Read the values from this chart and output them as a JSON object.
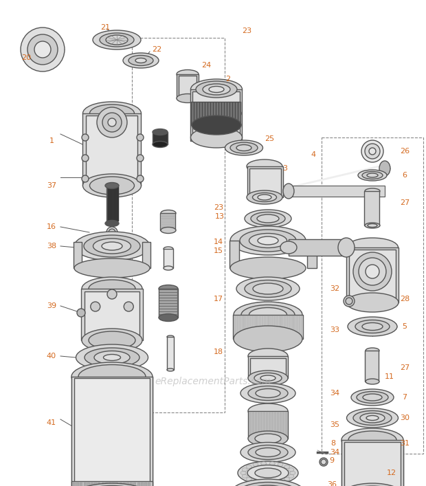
{
  "bg_color": "#ffffff",
  "watermark": "eReplacementParts.com",
  "watermark_color": "#b0b0b0",
  "label_color": "#d4691e",
  "line_color": "#444444",
  "edge_color": "#555555",
  "fill_light": "#e8e8e8",
  "fill_mid": "#d5d5d5",
  "fill_dark": "#aaaaaa",
  "figsize": [
    6.2,
    7.07
  ],
  "dpi": 100
}
